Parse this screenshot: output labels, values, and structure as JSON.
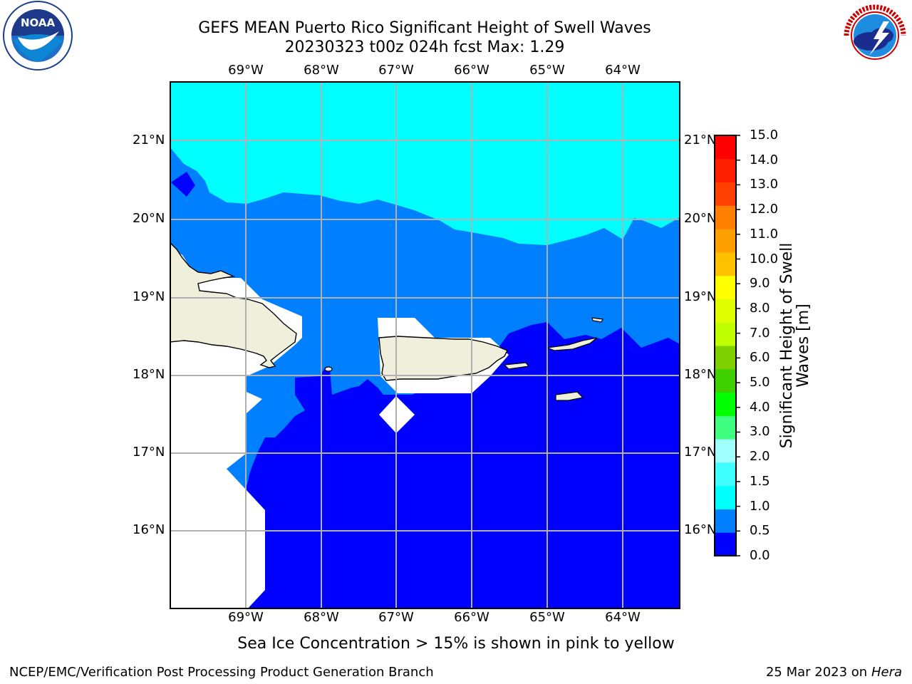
{
  "title": {
    "line1": "GEFS MEAN Puerto Rico Significant Height of Swell Waves",
    "line2": "20230323 t00z 024h fcst   Max: 1.29"
  },
  "logos": {
    "noaa": {
      "text": "NOAA",
      "ring_text": "NATIONAL OCEANIC AND ATMOSPHERIC ADMINISTRATION · U.S. DEPARTMENT OF COMMERCE"
    },
    "nws": {
      "ring_text": "NATIONAL WEATHER SERVICE"
    }
  },
  "map": {
    "lat_labels": [
      "21°N",
      "20°N",
      "19°N",
      "18°N",
      "17°N",
      "16°N"
    ],
    "lon_labels": [
      "69°W",
      "68°W",
      "67°W",
      "66°W",
      "65°W",
      "64°W"
    ]
  },
  "colorbar": {
    "label": "Significant Height of Swell Waves [m]",
    "ticks": [
      "15.0",
      "14.0",
      "13.0",
      "12.0",
      "11.0",
      "10.0",
      "9.0",
      "8.0",
      "7.0",
      "6.0",
      "5.0",
      "4.0",
      "3.0",
      "2.0",
      "1.5",
      "1.0",
      "0.5",
      "0.0"
    ],
    "colors": [
      "#0000ff",
      "#0080ff",
      "#00ffff",
      "#40ffff",
      "#a0ffff",
      "#40ff80",
      "#00ff00",
      "#40d000",
      "#80d000",
      "#c0ff00",
      "#e0ff00",
      "#ffff00",
      "#ffc000",
      "#ffa000",
      "#ff8000",
      "#ff4000",
      "#ff2000",
      "#ff0000"
    ]
  },
  "footnote": "Sea Ice Concentration > 15% is shown in pink to yellow",
  "credit": "NCEP/EMC/Verification Post Processing Product Generation Branch",
  "date": {
    "text": "25 Mar 2023 on",
    "host": "Hera"
  }
}
